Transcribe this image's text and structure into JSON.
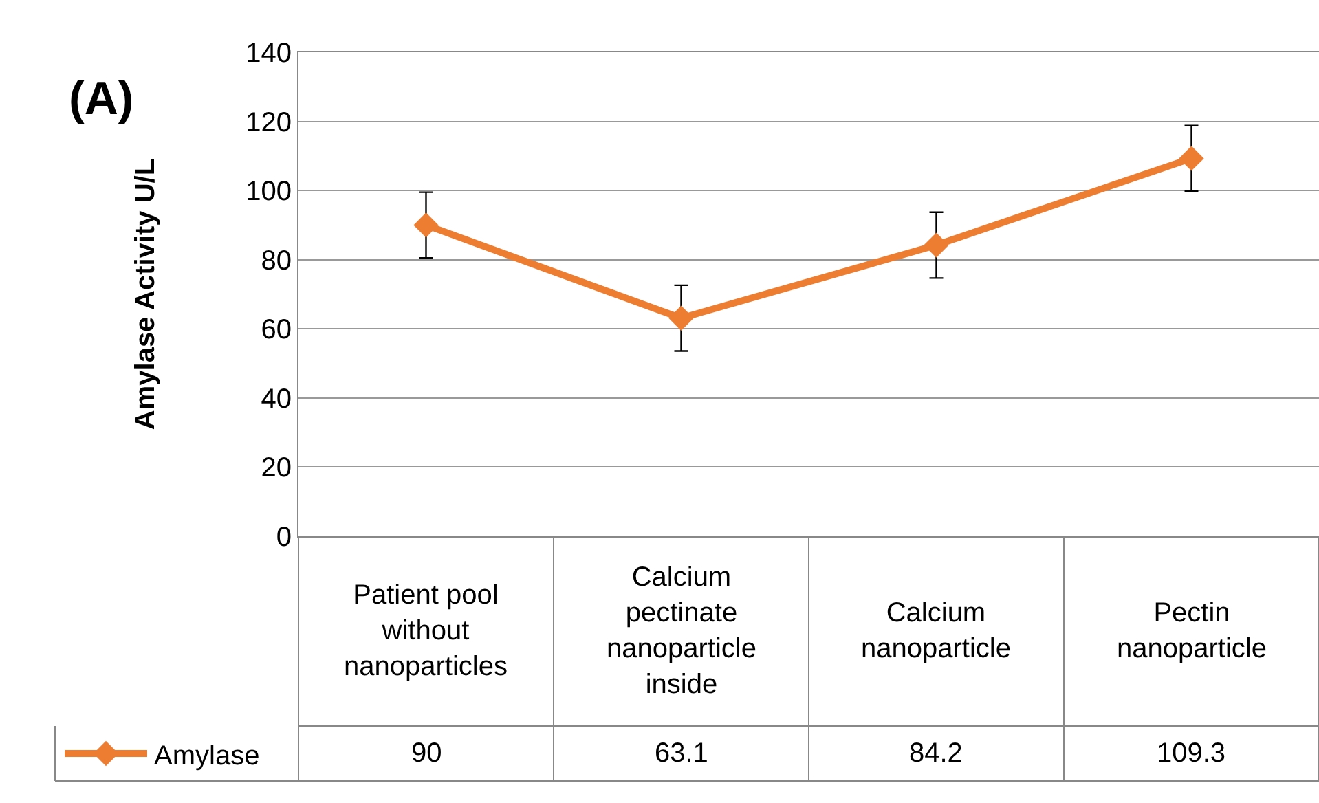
{
  "chart_data": {
    "type": "line",
    "title": "(A)",
    "ylabel": "Amylase Activity U/L",
    "categories": [
      "Patient pool without nanoparticles",
      "Calcium pectinate nanoparticle inside",
      "Calcium nanoparticle",
      "Pectin nanoparticle"
    ],
    "series": [
      {
        "name": "Amylase",
        "color": "#ed7d31",
        "values": [
          90,
          63.1,
          84.2,
          109.3
        ],
        "errors": [
          9.5,
          9.5,
          9.5,
          9.5
        ]
      }
    ],
    "ylim": [
      0,
      140
    ],
    "yticks": [
      0,
      20,
      40,
      60,
      80,
      100,
      120,
      140
    ],
    "grid": "y",
    "marker": "diamond",
    "line_style": "solid",
    "data_labels": true,
    "legend": "bottom left"
  }
}
